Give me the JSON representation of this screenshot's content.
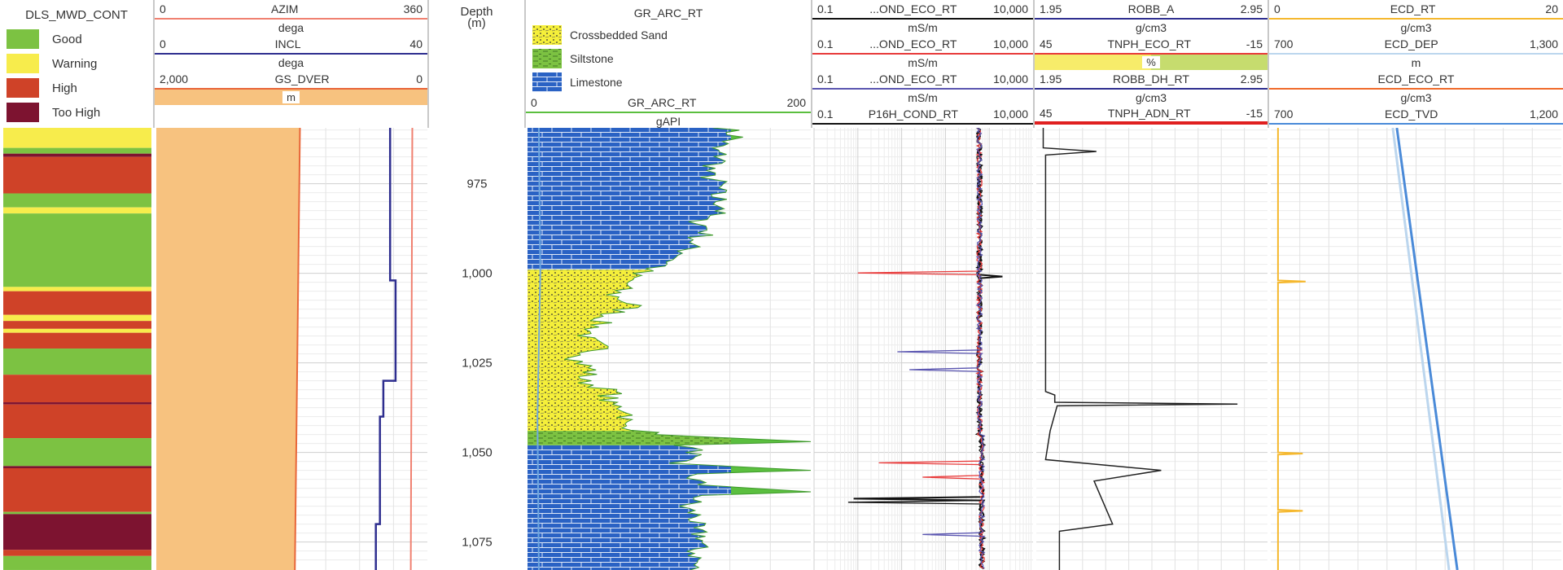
{
  "dls": {
    "title": "DLS_MWD_CONT",
    "legend": [
      {
        "label": "Good",
        "color": "#7cc242"
      },
      {
        "label": "Warning",
        "color": "#f7ec4c"
      },
      {
        "label": "High",
        "color": "#cf4228"
      },
      {
        "label": "Too High",
        "color": "#7d1330"
      }
    ]
  },
  "track2": {
    "curves": [
      {
        "name": "AZIM",
        "min": "0",
        "max": "360",
        "unit": "dega",
        "color": "#f08070"
      },
      {
        "name": "INCL",
        "min": "0",
        "max": "40",
        "unit": "dega",
        "color": "#2e2e8f"
      },
      {
        "name": "GS_DVER",
        "min": "2,000",
        "max": "0",
        "unit": "m",
        "color": "#e8673a",
        "fill": "#f7c27f"
      }
    ]
  },
  "depth": {
    "title": "Depth",
    "unit": "(m)"
  },
  "gr": {
    "title": "GR_ARC_RT",
    "legend": [
      "Crossbedded Sand",
      "Siltstone",
      "Limestone"
    ],
    "curve": {
      "name": "GR_ARC_RT",
      "min": "0",
      "max": "200",
      "unit": "gAPI",
      "color": "#5bbf3f"
    }
  },
  "res": {
    "curves": [
      {
        "name": "...OND_ECO_RT",
        "min": "0.1",
        "max": "10,000",
        "unit": "mS/m",
        "color": "#111111"
      },
      {
        "name": "...OND_ECO_RT",
        "min": "0.1",
        "max": "10,000",
        "unit": "mS/m",
        "color": "#e83a3a"
      },
      {
        "name": "...OND_ECO_RT",
        "min": "0.1",
        "max": "10,000",
        "unit": "mS/m",
        "color": "#5a55b0"
      },
      {
        "name": "P16H_COND_RT",
        "min": "0.1",
        "max": "10,000",
        "unit": "mS/m",
        "color": "#111111"
      }
    ]
  },
  "dens": {
    "curves": [
      {
        "name": "ROBB_A",
        "min": "1.95",
        "max": "2.95",
        "unit": "g/cm3",
        "color": "#2e2e8f"
      },
      {
        "name": "TNPH_ECO_RT",
        "min": "45",
        "max": "-15",
        "unit": "%",
        "color": "#e83a3a"
      },
      {
        "name": "ROBB_DH_RT",
        "min": "1.95",
        "max": "2.95",
        "unit": "g/cm3",
        "color": "#2e2e8f"
      },
      {
        "name": "TNPH_ADN_RT",
        "min": "45",
        "max": "-15",
        "unit": "",
        "color": "#e02020"
      }
    ]
  },
  "ecd": {
    "curves": [
      {
        "name": "ECD_RT",
        "min": "0",
        "max": "20",
        "unit": "g/cm3",
        "color": "#f5b82e"
      },
      {
        "name": "ECD_DEP",
        "min": "700",
        "max": "1,300",
        "unit": "m",
        "color": "#bcd6ee"
      },
      {
        "name": "ECD_ECO_RT",
        "min": "",
        "max": "",
        "unit": "g/cm3",
        "color": "#f06a2a"
      },
      {
        "name": "ECD_TVD",
        "min": "700",
        "max": "1,200",
        "unit": "",
        "color": "#4a8ad8"
      }
    ]
  },
  "chart_data": {
    "type": "well-log",
    "depth_range": [
      959.4,
      1082.8
    ],
    "depth_ticks": [
      "975",
      "1,000",
      "1,025",
      "1,050",
      "1,075"
    ],
    "depth_tick_values": [
      975,
      1000,
      1025,
      1050,
      1075
    ],
    "dls_intervals": [
      [
        959.4,
        965,
        "Warning"
      ],
      [
        965,
        966.6,
        "Good"
      ],
      [
        966.6,
        967.5,
        "Too High"
      ],
      [
        967.5,
        977.7,
        "High"
      ],
      [
        977.7,
        981.6,
        "Good"
      ],
      [
        981.6,
        983.3,
        "Warning"
      ],
      [
        983.3,
        1003.8,
        "Good"
      ],
      [
        1003.8,
        1005,
        "Warning"
      ],
      [
        1005,
        1011.6,
        "High"
      ],
      [
        1011.6,
        1013.3,
        "Warning"
      ],
      [
        1013.3,
        1015.5,
        "High"
      ],
      [
        1015.5,
        1016.6,
        "Warning"
      ],
      [
        1016.6,
        1021,
        "High"
      ],
      [
        1021,
        1028.3,
        "Good"
      ],
      [
        1028.3,
        1036,
        "High"
      ],
      [
        1036,
        1036.6,
        "Too High"
      ],
      [
        1036.6,
        1046,
        "High"
      ],
      [
        1046,
        1053.8,
        "Good"
      ],
      [
        1053.8,
        1054.4,
        "Too High"
      ],
      [
        1054.4,
        1066.6,
        "High"
      ],
      [
        1066.6,
        1067.2,
        "Good"
      ],
      [
        1067.2,
        1077.2,
        "Too High"
      ],
      [
        1077.2,
        1078.9,
        "High"
      ],
      [
        1078.9,
        1082.8,
        "Good"
      ]
    ],
    "AZIM": [
      [
        959,
        340
      ],
      [
        1083,
        338
      ]
    ],
    "INCL": [
      [
        959,
        34.5
      ],
      [
        1002,
        34.5
      ],
      [
        1002,
        35.3
      ],
      [
        1030,
        35.3
      ],
      [
        1030,
        33.5
      ],
      [
        1040,
        33.5
      ],
      [
        1040,
        33
      ],
      [
        1070,
        33
      ],
      [
        1070,
        32.4
      ],
      [
        1083,
        32.4
      ]
    ],
    "GS_DVER": [
      [
        959,
        940
      ],
      [
        1083,
        978
      ]
    ],
    "lithology": [
      [
        959,
        999,
        "Limestone"
      ],
      [
        999,
        1044,
        "Crossbedded Sand"
      ],
      [
        1044,
        1048,
        "Siltstone"
      ],
      [
        1048,
        1083,
        "Limestone"
      ]
    ],
    "GR_ARC_RT": [
      [
        959.4,
        140
      ],
      [
        962,
        148
      ],
      [
        965,
        130
      ],
      [
        968,
        138
      ],
      [
        972,
        125
      ],
      [
        975,
        135
      ],
      [
        978,
        132
      ],
      [
        982,
        140
      ],
      [
        985,
        120
      ],
      [
        988,
        128
      ],
      [
        992,
        115
      ],
      [
        995,
        110
      ],
      [
        998,
        95
      ],
      [
        1000,
        75
      ],
      [
        1003,
        70
      ],
      [
        1006,
        60
      ],
      [
        1009,
        75
      ],
      [
        1012,
        55
      ],
      [
        1015,
        48
      ],
      [
        1018,
        40
      ],
      [
        1021,
        52
      ],
      [
        1024,
        35
      ],
      [
        1027,
        45
      ],
      [
        1030,
        38
      ],
      [
        1033,
        60
      ],
      [
        1036,
        55
      ],
      [
        1039,
        75
      ],
      [
        1042,
        65
      ],
      [
        1045,
        90
      ],
      [
        1047,
        200
      ],
      [
        1048,
        110
      ],
      [
        1050,
        120
      ],
      [
        1053,
        100
      ],
      [
        1055,
        200
      ],
      [
        1056,
        115
      ],
      [
        1059,
        120
      ],
      [
        1061,
        200
      ],
      [
        1062,
        125
      ],
      [
        1065,
        110
      ],
      [
        1068,
        120
      ],
      [
        1071,
        115
      ],
      [
        1074,
        125
      ],
      [
        1077,
        118
      ],
      [
        1080,
        120
      ],
      [
        1082.8,
        115
      ]
    ],
    "GR_overlay": [
      [
        959.4,
        8
      ],
      [
        1000,
        9
      ],
      [
        1040,
        7
      ],
      [
        1082.8,
        8
      ]
    ],
    "COND_base": 600,
    "COND_spikes": [
      [
        0,
        1064,
        0.6
      ],
      [
        1,
        1000,
        1
      ],
      [
        1,
        1053,
        3
      ],
      [
        1,
        1057,
        30
      ],
      [
        2,
        1022,
        8
      ],
      [
        2,
        1027,
        15
      ],
      [
        2,
        1073,
        30
      ],
      [
        3,
        1063,
        0.8
      ],
      [
        3,
        1001,
        2000
      ]
    ],
    "ROBB_A": [
      [
        959.4,
        1.98
      ],
      [
        965,
        1.98
      ],
      [
        966,
        2.21
      ],
      [
        967,
        1.99
      ],
      [
        1033,
        1.99
      ],
      [
        1034,
        2.03
      ],
      [
        1036,
        2.03
      ],
      [
        1036.5,
        2.82
      ],
      [
        1037,
        2.04
      ],
      [
        1044,
        2.01
      ],
      [
        1052,
        1.99
      ],
      [
        1055,
        2.49
      ],
      [
        1058,
        2.2
      ],
      [
        1070,
        2.28
      ],
      [
        1072,
        2.05
      ],
      [
        1082.8,
        2.05
      ]
    ],
    "ECD_RT": [
      [
        959.4,
        0.5
      ],
      [
        1002,
        0.5
      ],
      [
        1002.3,
        2.4
      ],
      [
        1002.6,
        0.5
      ],
      [
        1050,
        0.5
      ],
      [
        1050.3,
        2.2
      ],
      [
        1050.6,
        0.5
      ],
      [
        1066,
        0.5
      ],
      [
        1066.3,
        2.2
      ],
      [
        1066.6,
        0.5
      ],
      [
        1082.8,
        0.5
      ]
    ],
    "ECD_TVD": [
      [
        959.4,
        917
      ],
      [
        1082.8,
        1021
      ]
    ],
    "ECD_DEP": [
      [
        959.4,
        952
      ],
      [
        1082.8,
        1068
      ]
    ]
  }
}
